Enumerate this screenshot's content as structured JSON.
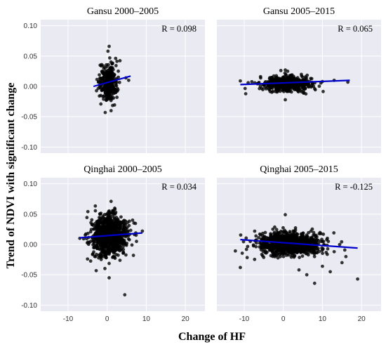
{
  "figure": {
    "xlabel": "Change of HF",
    "ylabel": "Trend of NDVI with significant change"
  },
  "chart_data": [
    {
      "type": "scatter",
      "title": "Gansu 2000–2005",
      "annotation": "R = 0.098",
      "xlim": [
        -17,
        25
      ],
      "ylim": [
        -0.11,
        0.11
      ],
      "xticks": [
        -10,
        0,
        10,
        20
      ],
      "yticks": [
        -0.1,
        -0.05,
        0.0,
        0.05,
        0.1
      ],
      "fit_line": {
        "x": [
          -3.5,
          6
        ],
        "y": [
          0.0,
          0.017
        ]
      },
      "cloud": {
        "x_center": 0.3,
        "x_spread": 1.1,
        "y_center": 0.006,
        "y_spread": 0.015,
        "n": 320
      },
      "points": [
        {
          "x": 0.5,
          "y": 0.066
        },
        {
          "x": 0.2,
          "y": 0.058
        },
        {
          "x": -0.5,
          "y": -0.043
        },
        {
          "x": 1.0,
          "y": -0.04
        },
        {
          "x": 5.5,
          "y": 0.01
        },
        {
          "x": 4.8,
          "y": 0.014
        },
        {
          "x": -2.0,
          "y": 0.019
        },
        {
          "x": 2.5,
          "y": -0.018
        }
      ]
    },
    {
      "type": "scatter",
      "title": "Gansu 2005–2015",
      "annotation": "R = 0.065",
      "xlim": [
        -17,
        25
      ],
      "ylim": [
        -0.11,
        0.11
      ],
      "xticks": [
        -10,
        0,
        10,
        20
      ],
      "yticks": [
        -0.1,
        -0.05,
        0.0,
        0.05,
        0.1
      ],
      "fit_line": {
        "x": [
          -11,
          17
        ],
        "y": [
          0.003,
          0.01
        ]
      },
      "cloud": {
        "x_center": 0.8,
        "x_spread": 3.2,
        "y_center": 0.004,
        "y_spread": 0.006,
        "n": 520
      },
      "points": [
        {
          "x": -11,
          "y": 0.009
        },
        {
          "x": -9,
          "y": 0.006
        },
        {
          "x": 16.5,
          "y": 0.007
        },
        {
          "x": 13,
          "y": 0.01
        },
        {
          "x": 10,
          "y": 0.008
        },
        {
          "x": 0.5,
          "y": 0.027
        },
        {
          "x": 0.5,
          "y": -0.022
        },
        {
          "x": 7,
          "y": 0.013
        }
      ]
    },
    {
      "type": "scatter",
      "title": "Qinghai 2000–2005",
      "annotation": "R = 0.034",
      "xlim": [
        -17,
        25
      ],
      "ylim": [
        -0.11,
        0.11
      ],
      "xticks": [
        -10,
        0,
        10,
        20
      ],
      "yticks": [
        -0.1,
        -0.05,
        0.0,
        0.05,
        0.1
      ],
      "fit_line": {
        "x": [
          -7,
          9
        ],
        "y": [
          0.011,
          0.019
        ]
      },
      "cloud": {
        "x_center": 0.5,
        "x_spread": 2.2,
        "y_center": 0.016,
        "y_spread": 0.017,
        "n": 900
      },
      "points": [
        {
          "x": -7,
          "y": 0.01
        },
        {
          "x": 9,
          "y": 0.022
        },
        {
          "x": 1,
          "y": 0.071
        },
        {
          "x": 4.5,
          "y": -0.083
        },
        {
          "x": 0.5,
          "y": -0.055
        },
        {
          "x": -3,
          "y": -0.02
        },
        {
          "x": 6.5,
          "y": 0.04
        },
        {
          "x": 7.5,
          "y": 0.005
        }
      ]
    },
    {
      "type": "scatter",
      "title": "Qinghai 2005–2015",
      "annotation": "R = -0.125",
      "xlim": [
        -17,
        25
      ],
      "ylim": [
        -0.11,
        0.11
      ],
      "xticks": [
        -10,
        0,
        10,
        20
      ],
      "yticks": [
        -0.1,
        -0.05,
        0.0,
        0.05,
        0.1
      ],
      "fit_line": {
        "x": [
          -11,
          19
        ],
        "y": [
          0.008,
          -0.006
        ]
      },
      "cloud": {
        "x_center": 1.5,
        "x_spread": 4.0,
        "y_center": 0.001,
        "y_spread": 0.009,
        "n": 1100
      },
      "points": [
        {
          "x": 19,
          "y": -0.057
        },
        {
          "x": -11,
          "y": -0.038
        },
        {
          "x": 0.5,
          "y": 0.049
        },
        {
          "x": 8,
          "y": -0.064
        },
        {
          "x": 12,
          "y": -0.045
        },
        {
          "x": 15,
          "y": -0.03
        },
        {
          "x": 16,
          "y": -0.02
        },
        {
          "x": 6,
          "y": -0.05
        },
        {
          "x": 4,
          "y": -0.042
        },
        {
          "x": 10,
          "y": -0.036
        },
        {
          "x": 13,
          "y": -0.012
        },
        {
          "x": -7,
          "y": 0.014
        }
      ]
    }
  ]
}
